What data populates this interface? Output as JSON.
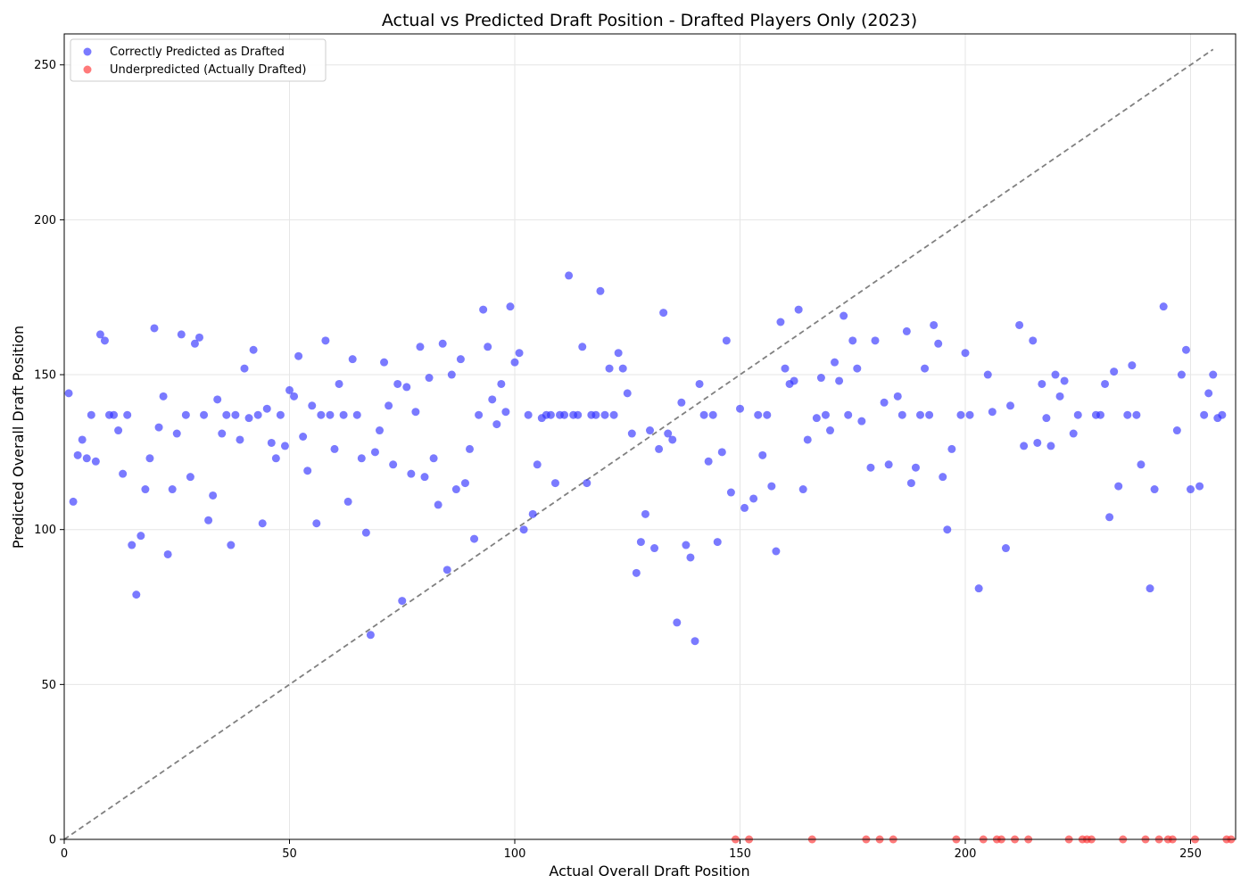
{
  "chart_data": {
    "type": "scatter",
    "title": "Actual vs Predicted Draft Position - Drafted Players Only (2023)",
    "xlabel": "Actual Overall Draft Position",
    "ylabel": "Predicted Overall Draft Position",
    "xlim": [
      0,
      260
    ],
    "ylim": [
      0,
      260
    ],
    "xticks": [
      0,
      50,
      100,
      150,
      200,
      250
    ],
    "yticks": [
      0,
      50,
      100,
      150,
      200,
      250
    ],
    "grid": true,
    "legend": "upper-left",
    "reference_line": {
      "from": [
        0,
        0
      ],
      "to": [
        255,
        255
      ],
      "style": "dashed",
      "color": "#808080"
    },
    "series": [
      {
        "name": "Correctly Predicted as Drafted",
        "color": "#3333ff",
        "x": [
          1,
          2,
          3,
          4,
          5,
          6,
          7,
          8,
          9,
          10,
          11,
          12,
          13,
          14,
          15,
          16,
          17,
          18,
          19,
          20,
          21,
          22,
          23,
          24,
          25,
          26,
          27,
          28,
          29,
          30,
          31,
          32,
          33,
          34,
          35,
          36,
          37,
          38,
          39,
          40,
          41,
          42,
          43,
          44,
          45,
          46,
          47,
          48,
          49,
          50,
          51,
          52,
          53,
          54,
          55,
          56,
          57,
          58,
          59,
          60,
          61,
          62,
          63,
          64,
          65,
          66,
          67,
          68,
          69,
          70,
          71,
          72,
          73,
          74,
          75,
          76,
          77,
          78,
          79,
          80,
          81,
          82,
          83,
          84,
          85,
          86,
          87,
          88,
          89,
          90,
          91,
          92,
          93,
          94,
          95,
          96,
          97,
          98,
          99,
          100,
          101,
          102,
          103,
          104,
          105,
          106,
          107,
          108,
          109,
          110,
          111,
          112,
          113,
          114,
          115,
          116,
          117,
          118,
          119,
          120,
          121,
          122,
          123,
          124,
          125,
          126,
          127,
          128,
          129,
          130,
          131,
          132,
          133,
          134,
          135,
          136,
          137,
          138,
          139,
          140,
          141,
          142,
          143,
          144,
          145,
          146,
          147,
          148,
          150,
          151,
          153,
          154,
          155,
          156,
          157,
          158,
          159,
          160,
          161,
          162,
          163,
          164,
          165,
          167,
          168,
          169,
          170,
          171,
          172,
          173,
          174,
          175,
          176,
          177,
          179,
          180,
          182,
          183,
          185,
          186,
          187,
          188,
          189,
          190,
          191,
          192,
          193,
          194,
          195,
          196,
          197,
          199,
          200,
          201,
          203,
          205,
          206,
          209,
          210,
          212,
          213,
          215,
          216,
          217,
          218,
          219,
          220,
          221,
          222,
          224,
          225,
          229,
          230,
          231,
          232,
          233,
          234,
          236,
          237,
          238,
          239,
          241,
          242,
          244,
          247,
          248,
          249,
          250,
          252,
          253,
          254,
          255,
          256,
          257
        ],
        "y": [
          144,
          109,
          124,
          129,
          123,
          137,
          122,
          163,
          161,
          137,
          137,
          132,
          118,
          137,
          95,
          79,
          98,
          113,
          123,
          165,
          133,
          143,
          92,
          113,
          131,
          163,
          137,
          117,
          160,
          162,
          137,
          103,
          111,
          142,
          131,
          137,
          95,
          137,
          129,
          152,
          136,
          158,
          137,
          102,
          139,
          128,
          123,
          137,
          127,
          145,
          143,
          156,
          130,
          119,
          140,
          102,
          137,
          161,
          137,
          126,
          147,
          137,
          109,
          155,
          137,
          123,
          99,
          66,
          125,
          132,
          154,
          140,
          121,
          147,
          77,
          146,
          118,
          138,
          159,
          117,
          149,
          123,
          108,
          160,
          87,
          150,
          113,
          155,
          115,
          126,
          97,
          137,
          171,
          159,
          142,
          134,
          147,
          138,
          172,
          154,
          157,
          100,
          137,
          105,
          121,
          136,
          137,
          137,
          115,
          137,
          137,
          182,
          137,
          137,
          159,
          115,
          137,
          137,
          177,
          137,
          152,
          137,
          157,
          152,
          144,
          131,
          86,
          96,
          105,
          132,
          94,
          126,
          170,
          131,
          129,
          70,
          141,
          95,
          91,
          64,
          147,
          137,
          122,
          137,
          96,
          125,
          161,
          112,
          139,
          107,
          110,
          137,
          124,
          137,
          114,
          93,
          167,
          152,
          147,
          148,
          171,
          113,
          129,
          136,
          149,
          137,
          132,
          154,
          148,
          169,
          137,
          161,
          152,
          135,
          120,
          161,
          141,
          121,
          143,
          137,
          164,
          115,
          120,
          137,
          152,
          137,
          166,
          160,
          117,
          100,
          126,
          137,
          157,
          137,
          81,
          150,
          138,
          94,
          140,
          166,
          127,
          161,
          128,
          147,
          136,
          127,
          150,
          143,
          148,
          131,
          137,
          137,
          137,
          147,
          104,
          151,
          114,
          137,
          153,
          137,
          121,
          81,
          113,
          172,
          132,
          150,
          158,
          113,
          114,
          137,
          144,
          150,
          136,
          137
        ]
      },
      {
        "name": "Underpredicted (Actually Drafted)",
        "color": "#ff3333",
        "x": [
          149,
          152,
          166,
          178,
          181,
          184,
          198,
          204,
          207,
          208,
          211,
          214,
          223,
          226,
          227,
          228,
          235,
          240,
          243,
          245,
          246,
          251,
          258,
          259
        ],
        "y": [
          0,
          0,
          0,
          0,
          0,
          0,
          0,
          0,
          0,
          0,
          0,
          0,
          0,
          0,
          0,
          0,
          0,
          0,
          0,
          0,
          0,
          0,
          0,
          0
        ]
      }
    ]
  }
}
